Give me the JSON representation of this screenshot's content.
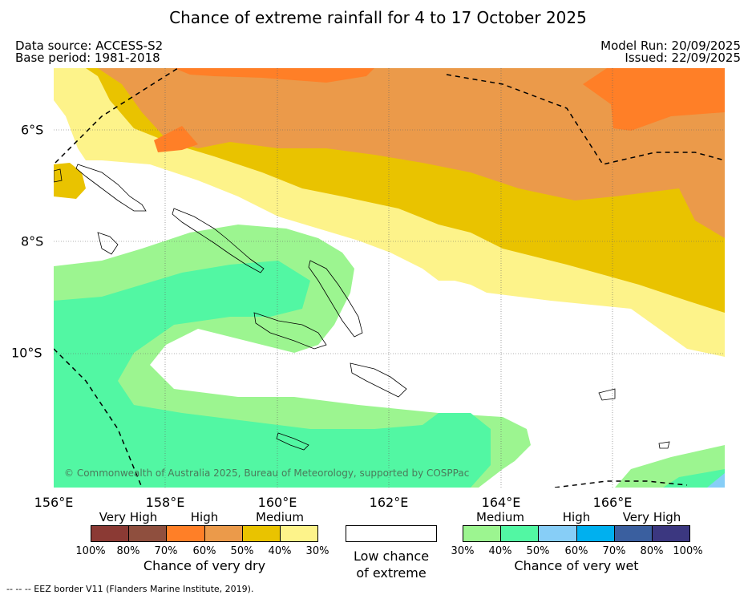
{
  "title": "Chance of extreme rainfall for 4 to 17 October 2025",
  "header": {
    "data_source": "Data source: ACCESS-S2",
    "base_period": "Base period: 1981-2018",
    "model_run": "Model Run: 20/09/2025",
    "issued": "Issued: 22/09/2025"
  },
  "axes": {
    "lon_labels": [
      "156°E",
      "158°E",
      "160°E",
      "162°E",
      "164°E",
      "166°E"
    ],
    "lat_labels": [
      "6°S",
      "8°S",
      "10°S"
    ]
  },
  "copyright": "© Commonwealth of Australia 2025, Bureau of Meteorology, supported by COSPPac",
  "legend": {
    "dry": {
      "categories": [
        "Very High",
        "High",
        "Medium"
      ],
      "ticks": [
        "100%",
        "80%",
        "70%",
        "60%",
        "50%",
        "40%",
        "30%"
      ],
      "colors": [
        "#8b3a34",
        "#8f4f3e",
        "#ff7f27",
        "#eb9a4a",
        "#e9c300",
        "#fdf38a"
      ],
      "caption": "Chance of very dry"
    },
    "low": {
      "line1": "Low chance",
      "line2": "of extreme"
    },
    "wet": {
      "categories": [
        "Medium",
        "High",
        "Very High"
      ],
      "ticks": [
        "30%",
        "40%",
        "50%",
        "60%",
        "70%",
        "80%",
        "100%"
      ],
      "colors": [
        "#9cf590",
        "#52f7a3",
        "#87cef7",
        "#00b0ef",
        "#3a5f9f",
        "#3b3780"
      ],
      "caption": "Chance of very wet"
    }
  },
  "footnote": "--  --  -- EEZ border V11 (Flanders Marine Institute, 2019)."
}
